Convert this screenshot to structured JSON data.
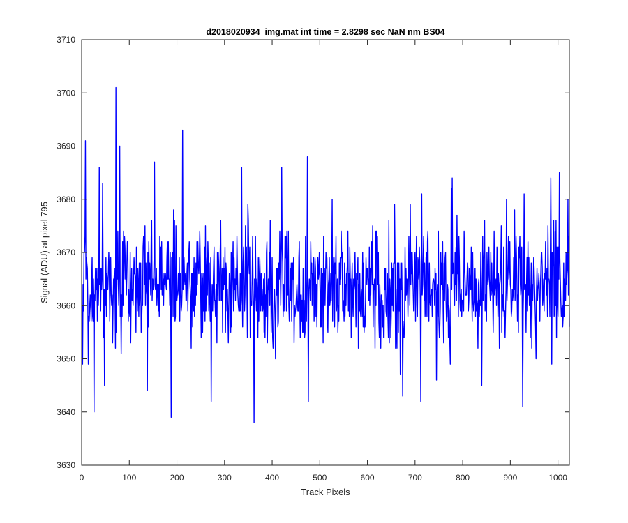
{
  "chart_data": {
    "type": "line",
    "title": "d2018020934_img.mat int time = 2.8298 sec  NaN nm BS04",
    "xlabel": "Track Pixels",
    "ylabel": "Signal (ADU) at pixel 795",
    "xlim": [
      0,
      1024
    ],
    "ylim": [
      3630,
      3710
    ],
    "xticks": [
      0,
      100,
      200,
      300,
      400,
      500,
      600,
      700,
      800,
      900,
      1000
    ],
    "yticks": [
      3630,
      3640,
      3650,
      3660,
      3670,
      3680,
      3690,
      3700,
      3710
    ],
    "grid": false,
    "legend": "none",
    "line_color": "#0000ff",
    "series": [
      {
        "x_start": 1,
        "x_step": 1,
        "count": 1024,
        "mean": 3664,
        "spread": 5.5,
        "extremes": [
          {
            "x": 2,
            "y": 3649
          },
          {
            "x": 8,
            "y": 3691
          },
          {
            "x": 14,
            "y": 3649
          },
          {
            "x": 26,
            "y": 3640
          },
          {
            "x": 37,
            "y": 3686
          },
          {
            "x": 44,
            "y": 3683
          },
          {
            "x": 48,
            "y": 3645
          },
          {
            "x": 72,
            "y": 3701
          },
          {
            "x": 80,
            "y": 3690
          },
          {
            "x": 138,
            "y": 3644
          },
          {
            "x": 153,
            "y": 3687
          },
          {
            "x": 188,
            "y": 3639
          },
          {
            "x": 212,
            "y": 3693
          },
          {
            "x": 272,
            "y": 3642
          },
          {
            "x": 336,
            "y": 3686
          },
          {
            "x": 362,
            "y": 3638
          },
          {
            "x": 420,
            "y": 3686
          },
          {
            "x": 474,
            "y": 3688
          },
          {
            "x": 476,
            "y": 3642
          },
          {
            "x": 674,
            "y": 3643
          },
          {
            "x": 712,
            "y": 3642
          },
          {
            "x": 778,
            "y": 3684
          },
          {
            "x": 840,
            "y": 3645
          },
          {
            "x": 926,
            "y": 3641
          },
          {
            "x": 985,
            "y": 3684
          },
          {
            "x": 1003,
            "y": 3685
          },
          {
            "x": 1010,
            "y": 3656
          },
          {
            "x": 1021,
            "y": 3680
          },
          {
            "x": 1024,
            "y": 3656
          }
        ]
      }
    ]
  }
}
